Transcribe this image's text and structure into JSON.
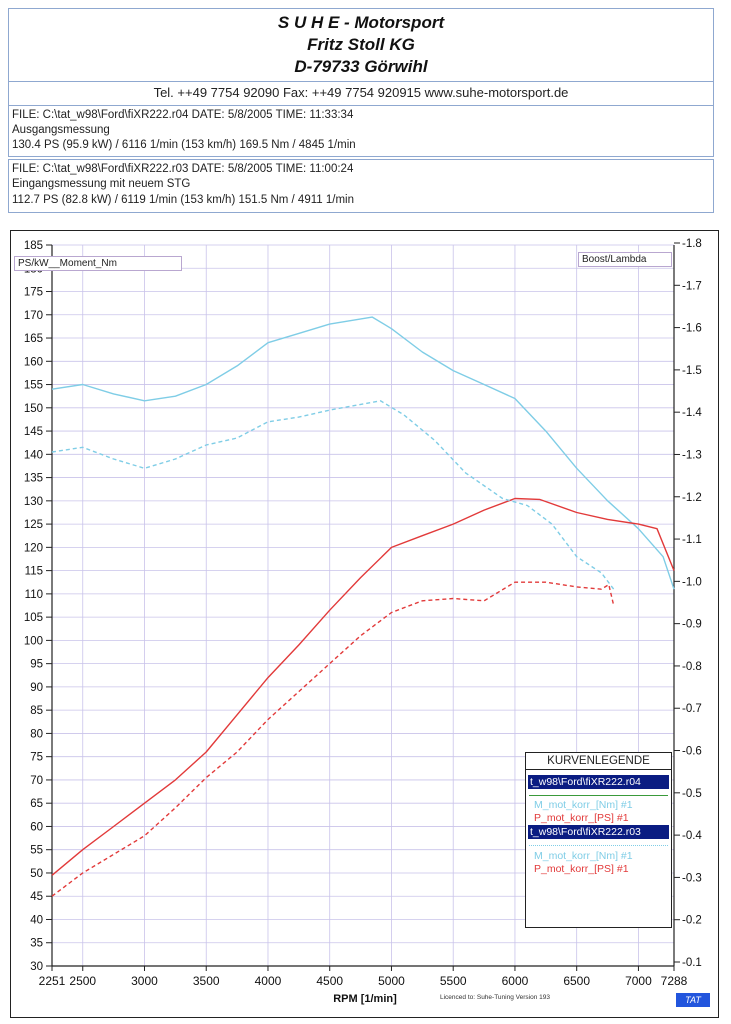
{
  "header": {
    "company": "S U H E - Motorsport",
    "owner": "Fritz Stoll KG",
    "address": "D-79733 Görwihl",
    "contact": "Tel. ++49 7754 92090   Fax: ++49 7754 920915   www.suhe-motorsport.de"
  },
  "files": [
    {
      "line1": "FILE: C:\\tat_w98\\Ford\\fiXR222.r04   DATE: 5/8/2005   TIME: 11:33:34",
      "line2": "Ausgangsmessung",
      "line3": "130.4 PS   (95.9 kW) / 6116 1/min (153 km/h)     169.5 Nm / 4845 1/min"
    },
    {
      "line1": "FILE: C:\\tat_w98\\Ford\\fiXR222.r03   DATE: 5/8/2005   TIME: 11:00:24",
      "line2": "Eingangsmessung mit neuem STG",
      "line3": "112.7 PS   (82.8 kW) / 6119 1/min (153 km/h)     151.5 Nm / 4911 1/min"
    }
  ],
  "colors": {
    "torque": "#7fcde6",
    "power": "#e23a3a",
    "grid": "#c9c3ea",
    "legend_file_bg": "#0a1c82"
  },
  "chart_data": {
    "type": "line",
    "xlabel": "RPM   [1/min]",
    "left_axis_label": "PS/kW__Moment_Nm",
    "right_axis_label": "Boost/Lambda",
    "xlim": [
      2251,
      7288
    ],
    "ylim": [
      30,
      185
    ],
    "ylim_right": [
      -0.1,
      -1.8
    ],
    "x_ticks": [
      2251,
      2500,
      3000,
      3500,
      4000,
      4500,
      5000,
      5500,
      6000,
      6500,
      7000,
      7288
    ],
    "y_ticks": [
      30,
      35,
      40,
      45,
      50,
      55,
      60,
      65,
      70,
      75,
      80,
      85,
      90,
      95,
      100,
      105,
      110,
      115,
      120,
      125,
      130,
      135,
      140,
      145,
      150,
      155,
      160,
      165,
      170,
      175,
      180,
      185
    ],
    "y_right_ticks": [
      "-1.8",
      "-1.7",
      "-1.6",
      "-1.5",
      "-1.4",
      "-1.3",
      "-1.2",
      "-1.1",
      "-1.0",
      "-0.9",
      "-0.8",
      "-0.7",
      "-0.6",
      "-0.5",
      "-0.4",
      "-0.3",
      "-0.2",
      "-0.1"
    ],
    "grid": true,
    "series": [
      {
        "name": "M_mot_korr_[Nm] #1",
        "file": "r04",
        "style": "solid",
        "color": "#7fcde6",
        "points": [
          [
            2251,
            154
          ],
          [
            2500,
            155
          ],
          [
            2750,
            153
          ],
          [
            3000,
            151.5
          ],
          [
            3250,
            152.5
          ],
          [
            3500,
            155
          ],
          [
            3750,
            159
          ],
          [
            4000,
            164
          ],
          [
            4250,
            166
          ],
          [
            4500,
            168
          ],
          [
            4845,
            169.5
          ],
          [
            5000,
            167
          ],
          [
            5250,
            162
          ],
          [
            5500,
            158
          ],
          [
            5750,
            155
          ],
          [
            6000,
            152
          ],
          [
            6250,
            145
          ],
          [
            6500,
            137
          ],
          [
            6750,
            130
          ],
          [
            7000,
            124
          ],
          [
            7200,
            118
          ],
          [
            7288,
            111
          ]
        ]
      },
      {
        "name": "P_mot_korr_[PS] #1",
        "file": "r04",
        "style": "solid",
        "color": "#e23a3a",
        "points": [
          [
            2251,
            49.5
          ],
          [
            2500,
            55
          ],
          [
            2750,
            60
          ],
          [
            3000,
            65
          ],
          [
            3250,
            70
          ],
          [
            3500,
            76
          ],
          [
            3750,
            84
          ],
          [
            4000,
            92
          ],
          [
            4250,
            99
          ],
          [
            4500,
            106.5
          ],
          [
            4750,
            113.5
          ],
          [
            5000,
            120
          ],
          [
            5250,
            122.5
          ],
          [
            5500,
            125
          ],
          [
            5750,
            128
          ],
          [
            6000,
            130.5
          ],
          [
            6200,
            130.3
          ],
          [
            6500,
            127.5
          ],
          [
            6750,
            126
          ],
          [
            7000,
            125
          ],
          [
            7150,
            124
          ],
          [
            7288,
            115
          ]
        ]
      },
      {
        "name": "M_mot_korr_[Nm] #1",
        "file": "r03",
        "style": "dashed",
        "color": "#7fcde6",
        "points": [
          [
            2251,
            140.5
          ],
          [
            2500,
            141.5
          ],
          [
            2750,
            139
          ],
          [
            3000,
            137
          ],
          [
            3250,
            139
          ],
          [
            3500,
            142
          ],
          [
            3750,
            143.5
          ],
          [
            4000,
            147
          ],
          [
            4250,
            148
          ],
          [
            4500,
            149.5
          ],
          [
            4911,
            151.5
          ],
          [
            5100,
            148.5
          ],
          [
            5350,
            143
          ],
          [
            5600,
            136
          ],
          [
            5900,
            130.5
          ],
          [
            6100,
            129
          ],
          [
            6300,
            125
          ],
          [
            6500,
            118
          ],
          [
            6700,
            114.5
          ],
          [
            6800,
            111
          ]
        ]
      },
      {
        "name": "P_mot_korr_[PS] #1",
        "file": "r03",
        "style": "dashed",
        "color": "#e23a3a",
        "points": [
          [
            2251,
            45
          ],
          [
            2500,
            50
          ],
          [
            2750,
            54
          ],
          [
            3000,
            58
          ],
          [
            3250,
            64
          ],
          [
            3500,
            70.5
          ],
          [
            3750,
            76
          ],
          [
            4000,
            83
          ],
          [
            4250,
            89
          ],
          [
            4500,
            95
          ],
          [
            4750,
            101
          ],
          [
            5000,
            106
          ],
          [
            5250,
            108.5
          ],
          [
            5500,
            109
          ],
          [
            5750,
            108.5
          ],
          [
            6000,
            112.5
          ],
          [
            6250,
            112.5
          ],
          [
            6500,
            111.5
          ],
          [
            6700,
            111
          ],
          [
            6760,
            112
          ],
          [
            6800,
            107.5
          ]
        ]
      }
    ]
  },
  "legend": {
    "title": "KURVENLEGENDE",
    "file1": "t_w98\\Ford\\fiXR222.r04",
    "file1_m": "M_mot_korr_[Nm] #1",
    "file1_p": "P_mot_korr_[PS] #1",
    "file2": "t_w98\\Ford\\fiXR222.r03",
    "file2_m": "M_mot_korr_[Nm] #1",
    "file2_p": "P_mot_korr_[PS] #1"
  },
  "footer": {
    "credit": "Licenced to: Suhe-Tuning   Version 193",
    "brand": "TAT"
  }
}
